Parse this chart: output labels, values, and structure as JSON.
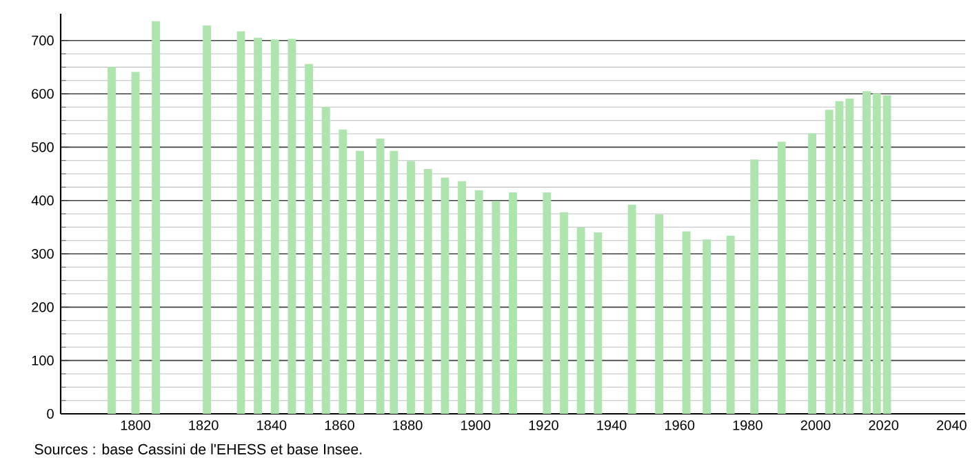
{
  "chart_data": {
    "type": "bar",
    "color": "#aee4ae",
    "x": [
      1793,
      1800,
      1806,
      1821,
      1831,
      1836,
      1841,
      1846,
      1851,
      1856,
      1861,
      1866,
      1872,
      1876,
      1881,
      1886,
      1891,
      1896,
      1901,
      1906,
      1911,
      1921,
      1926,
      1931,
      1936,
      1946,
      1954,
      1962,
      1968,
      1975,
      1982,
      1990,
      1999,
      2004,
      2007,
      2010,
      2015,
      2018,
      2021
    ],
    "values": [
      650,
      641,
      736,
      728,
      717,
      705,
      702,
      703,
      656,
      575,
      533,
      493,
      516,
      493,
      474,
      459,
      443,
      436,
      419,
      399,
      415,
      415,
      378,
      349,
      340,
      392,
      374,
      342,
      327,
      334,
      477,
      510,
      526,
      570,
      586,
      591,
      605,
      601,
      597
    ],
    "xlim": [
      1778,
      2044
    ],
    "xticks": [
      1800,
      1820,
      1840,
      1860,
      1880,
      1900,
      1920,
      1940,
      1960,
      1980,
      2000,
      2020,
      2040
    ],
    "ylim": [
      0,
      750
    ],
    "yticks": [
      0,
      100,
      200,
      300,
      400,
      500,
      600,
      700
    ],
    "grid": "y",
    "annotations": [
      "Sources : base Cassini de l'EHESS et base Insee."
    ]
  }
}
